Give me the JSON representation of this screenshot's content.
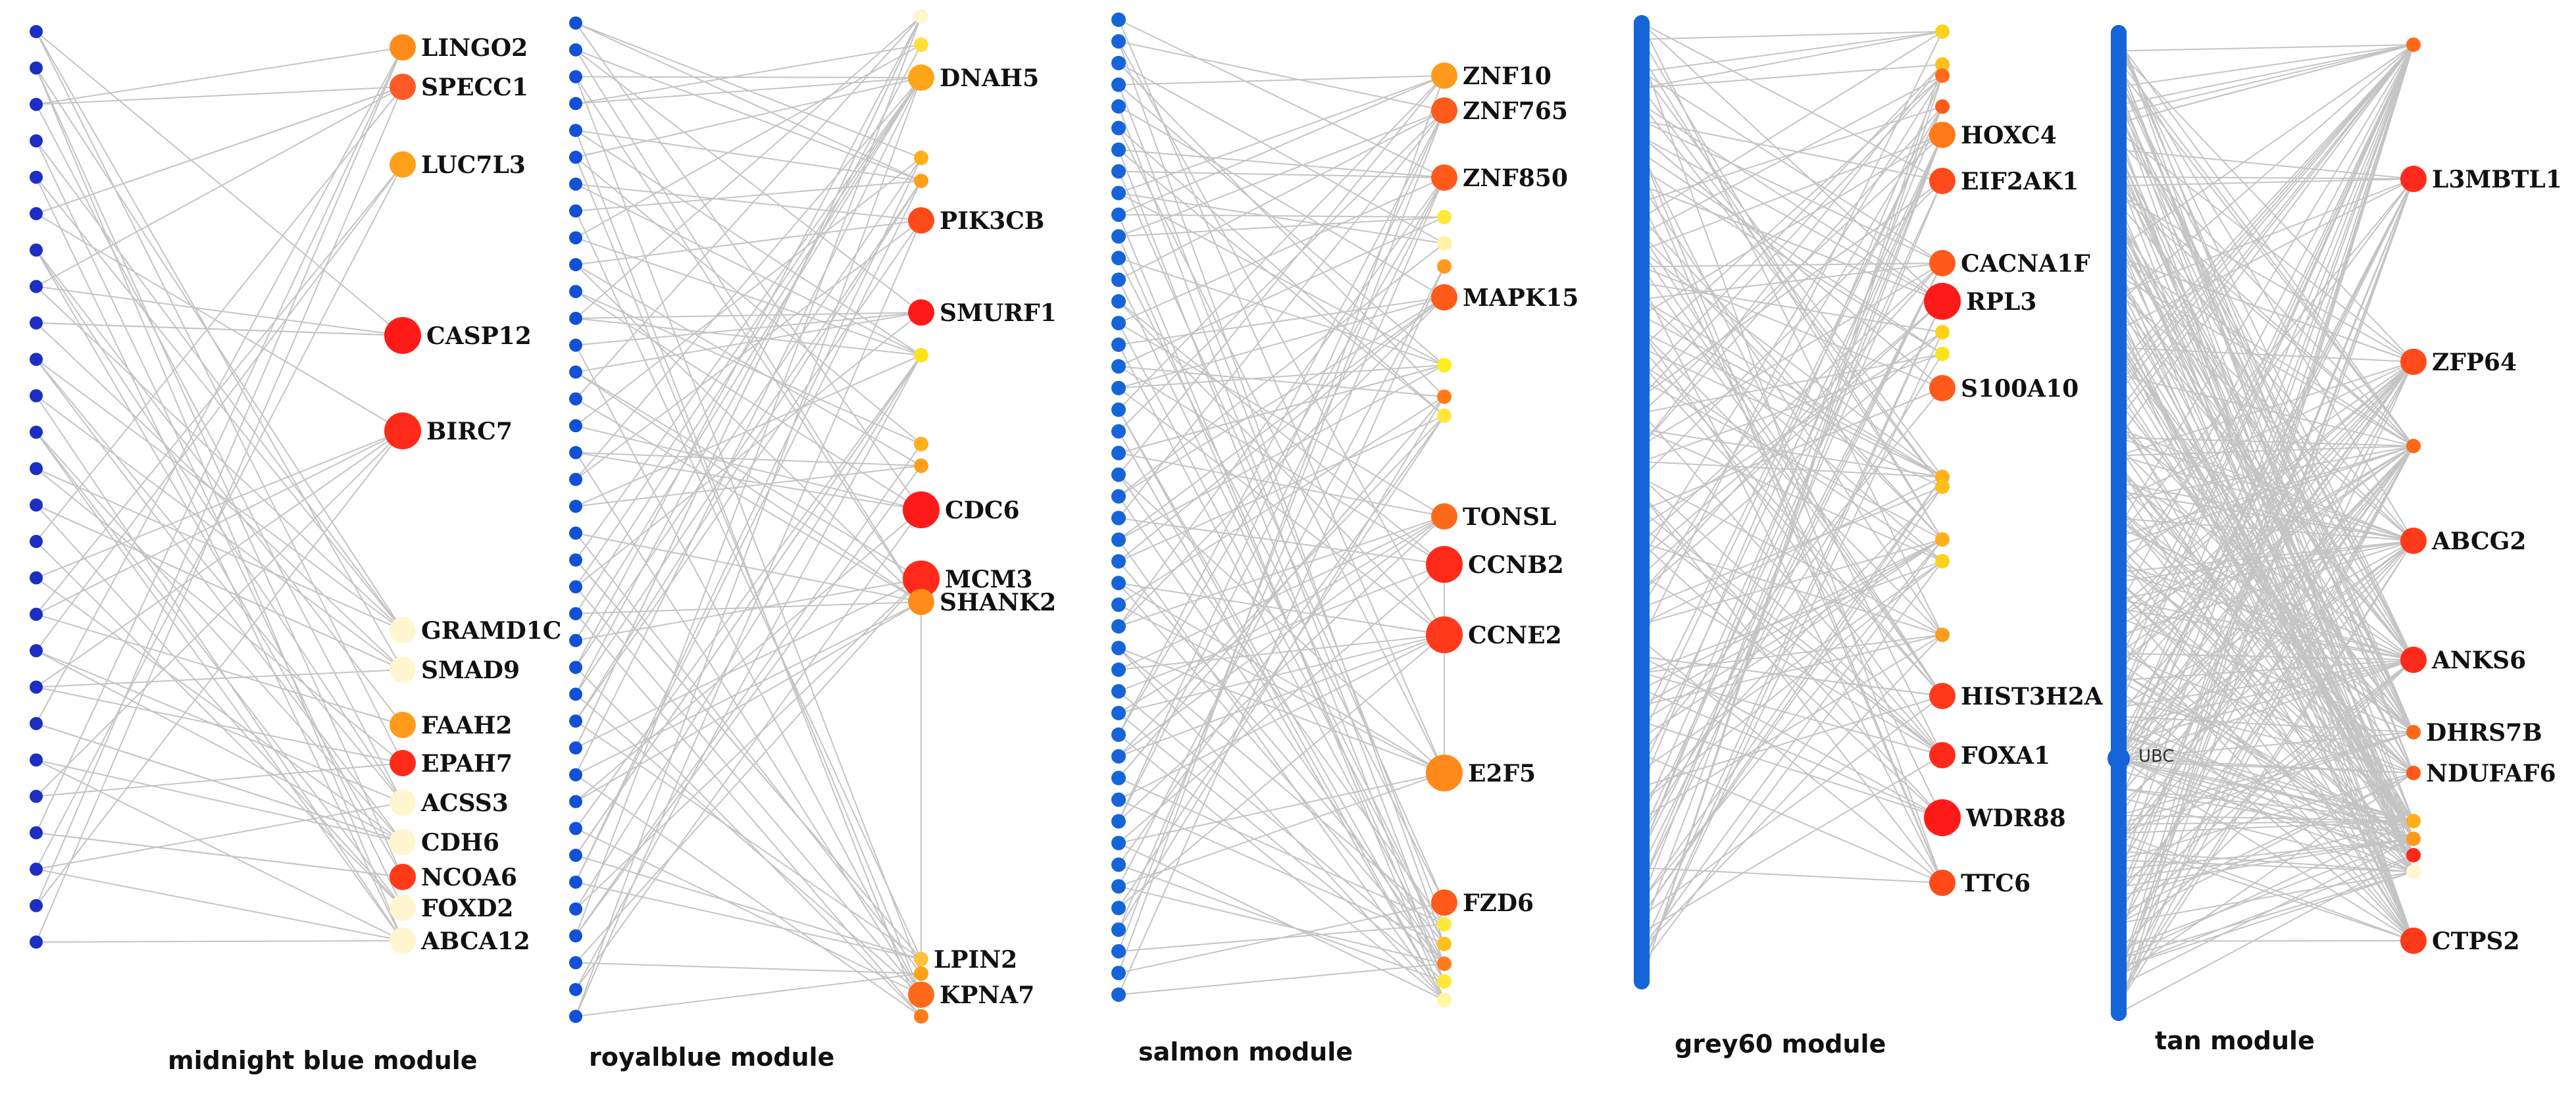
{
  "figure": {
    "colors": {
      "source_node": "#1c2fc2",
      "source_node_alt": "#1565d8",
      "edge": "#c4c4c4",
      "label": "#111111"
    },
    "modules": [
      {
        "id": "midnightblue",
        "label": "midnight blue module",
        "source_color": "#1c2fc2",
        "source_count": 26,
        "genes": [
          {
            "name": "LINGO2",
            "color": "#ff8c1a",
            "size": "m"
          },
          {
            "name": "SPECC1",
            "color": "#ff5a26",
            "size": "m"
          },
          {
            "name": "LUC7L3",
            "color": "#ff9f1a",
            "size": "m"
          },
          {
            "name": "CASP12",
            "color": "#ff1a1a",
            "size": "l"
          },
          {
            "name": "BIRC7",
            "color": "#ff2a1a",
            "size": "l"
          },
          {
            "name": "GRAMD1C",
            "color": "#fff6cf",
            "size": "m"
          },
          {
            "name": "SMAD9",
            "color": "#fff6cf",
            "size": "m"
          },
          {
            "name": "FAAH2",
            "color": "#ff9a1a",
            "size": "m"
          },
          {
            "name": "EPAH7",
            "color": "#ff2a1a",
            "size": "m"
          },
          {
            "name": "ACSS3",
            "color": "#fff6cf",
            "size": "m"
          },
          {
            "name": "CDH6",
            "color": "#fff6cf",
            "size": "m"
          },
          {
            "name": "NCOA6",
            "color": "#ff3a1a",
            "size": "m"
          },
          {
            "name": "FOXD2",
            "color": "#fff6cf",
            "size": "m"
          },
          {
            "name": "ABCA12",
            "color": "#fff6cf",
            "size": "m"
          }
        ]
      },
      {
        "id": "royalblue",
        "label": "royalblue module",
        "source_color": "#1250d6",
        "source_count": 38,
        "genes": [
          {
            "name": "",
            "color": "#fff6cf",
            "size": "s"
          },
          {
            "name": "",
            "color": "#ffe03a",
            "size": "s"
          },
          {
            "name": "DNAH5",
            "color": "#ffa51a",
            "size": "m"
          },
          {
            "name": "",
            "color": "#ffb01a",
            "size": "s"
          },
          {
            "name": "",
            "color": "#ffa01a",
            "size": "s"
          },
          {
            "name": "PIK3CB",
            "color": "#ff4a1a",
            "size": "m"
          },
          {
            "name": "SMURF1",
            "color": "#ff1a1a",
            "size": "m"
          },
          {
            "name": "",
            "color": "#ffe31a",
            "size": "s"
          },
          {
            "name": "",
            "color": "#ffb01a",
            "size": "s"
          },
          {
            "name": "",
            "color": "#ffa01a",
            "size": "s"
          },
          {
            "name": "CDC6",
            "color": "#ff1a1a",
            "size": "l"
          },
          {
            "name": "MCM3",
            "color": "#ff2a1a",
            "size": "l"
          },
          {
            "name": "SHANK2",
            "color": "#ff8c1a",
            "size": "m"
          },
          {
            "name": "LPIN2",
            "color": "#ffc23a",
            "size": "s"
          },
          {
            "name": "",
            "color": "#ffa01a",
            "size": "s"
          },
          {
            "name": "KPNA7",
            "color": "#ff6a1a",
            "size": "m"
          },
          {
            "name": "",
            "color": "#ff7a1a",
            "size": "s"
          }
        ]
      },
      {
        "id": "salmon",
        "label": "salmon module",
        "source_color": "#1565d8",
        "source_count": 46,
        "genes": [
          {
            "name": "ZNF10",
            "color": "#ff9a1a",
            "size": "m"
          },
          {
            "name": "ZNF765",
            "color": "#ff5a1a",
            "size": "m"
          },
          {
            "name": "ZNF850",
            "color": "#ff5a1a",
            "size": "m"
          },
          {
            "name": "",
            "color": "#ffe83a",
            "size": "s"
          },
          {
            "name": "",
            "color": "#fff2a0",
            "size": "s"
          },
          {
            "name": "",
            "color": "#ff9a1a",
            "size": "s"
          },
          {
            "name": "MAPK15",
            "color": "#ff5a1a",
            "size": "m"
          },
          {
            "name": "",
            "color": "#ffee1a",
            "size": "s"
          },
          {
            "name": "",
            "color": "#ff7a1a",
            "size": "s"
          },
          {
            "name": "",
            "color": "#ffe83a",
            "size": "s"
          },
          {
            "name": "TONSL",
            "color": "#ff6a1a",
            "size": "m"
          },
          {
            "name": "CCNB2",
            "color": "#ff2a1a",
            "size": "l"
          },
          {
            "name": "CCNE2",
            "color": "#ff3a1a",
            "size": "l"
          },
          {
            "name": "E2F5",
            "color": "#ff8a1a",
            "size": "l"
          },
          {
            "name": "FZD6",
            "color": "#ff5a1a",
            "size": "m"
          },
          {
            "name": "",
            "color": "#ffe83a",
            "size": "s"
          },
          {
            "name": "",
            "color": "#ffc01a",
            "size": "s"
          },
          {
            "name": "",
            "color": "#ff7a1a",
            "size": "s"
          },
          {
            "name": "",
            "color": "#ffe83a",
            "size": "s"
          },
          {
            "name": "",
            "color": "#fff6a0",
            "size": "s"
          }
        ]
      },
      {
        "id": "grey60",
        "label": "grey60 module",
        "source_color": "#1565d8",
        "source_count": 60,
        "genes": [
          {
            "name": "",
            "color": "#ffd21a",
            "size": "s"
          },
          {
            "name": "",
            "color": "#ffc01a",
            "size": "s"
          },
          {
            "name": "",
            "color": "#ff6a1a",
            "size": "s"
          },
          {
            "name": "",
            "color": "#ff5a1a",
            "size": "s"
          },
          {
            "name": "HOXC4",
            "color": "#ff7a1a",
            "size": "m"
          },
          {
            "name": "EIF2AK1",
            "color": "#ff4a1a",
            "size": "m"
          },
          {
            "name": "CACNA1F",
            "color": "#ff5a1a",
            "size": "m"
          },
          {
            "name": "RPL3",
            "color": "#ff1a1a",
            "size": "l"
          },
          {
            "name": "",
            "color": "#ffd21a",
            "size": "s"
          },
          {
            "name": "",
            "color": "#ffe31a",
            "size": "s"
          },
          {
            "name": "S100A10",
            "color": "#ff5a1a",
            "size": "m"
          },
          {
            "name": "",
            "color": "#ffb01a",
            "size": "s"
          },
          {
            "name": "",
            "color": "#ffc01a",
            "size": "s"
          },
          {
            "name": "",
            "color": "#ffb01a",
            "size": "s"
          },
          {
            "name": "",
            "color": "#ffd21a",
            "size": "s"
          },
          {
            "name": "",
            "color": "#ff9a1a",
            "size": "s"
          },
          {
            "name": "HIST3H2A",
            "color": "#ff3a1a",
            "size": "m"
          },
          {
            "name": "FOXA1",
            "color": "#ff2a1a",
            "size": "m"
          },
          {
            "name": "WDR88",
            "color": "#ff1a1a",
            "size": "l"
          },
          {
            "name": "TTC6",
            "color": "#ff4a1a",
            "size": "m"
          }
        ]
      },
      {
        "id": "tan",
        "label": "tan module",
        "source_color": "#1565d8",
        "source_count": 110,
        "hub_label": "UBC",
        "genes": [
          {
            "name": "",
            "color": "#ff6a1a",
            "size": "s"
          },
          {
            "name": "L3MBTL1",
            "color": "#ff2a1a",
            "size": "m"
          },
          {
            "name": "ZFP64",
            "color": "#ff4a1a",
            "size": "m"
          },
          {
            "name": "",
            "color": "#ff6a1a",
            "size": "s"
          },
          {
            "name": "ABCG2",
            "color": "#ff3a1a",
            "size": "m"
          },
          {
            "name": "ANKS6",
            "color": "#ff2a1a",
            "size": "m"
          },
          {
            "name": "DHRS7B",
            "color": "#ff6a1a",
            "size": "s"
          },
          {
            "name": "NDUFAF6",
            "color": "#ff5a1a",
            "size": "s"
          },
          {
            "name": "",
            "color": "#ffb01a",
            "size": "s"
          },
          {
            "name": "",
            "color": "#ff9a1a",
            "size": "s"
          },
          {
            "name": "",
            "color": "#ff2a1a",
            "size": "s"
          },
          {
            "name": "",
            "color": "#fff6cf",
            "size": "s"
          },
          {
            "name": "CTPS2",
            "color": "#ff3a1a",
            "size": "m"
          }
        ]
      }
    ]
  }
}
